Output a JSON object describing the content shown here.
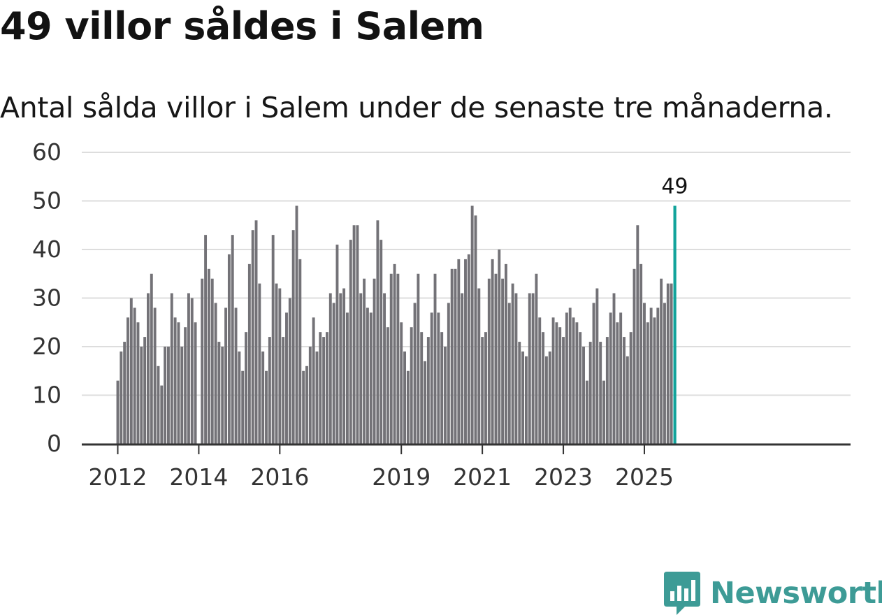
{
  "title": "49 villor såldes i Salem",
  "subtitle": "Antal sålda villor i Salem under de senaste tre månaderna.",
  "brand": {
    "name": "Newsworthy",
    "color": "#3d9b96"
  },
  "colors": {
    "bar": "#737277",
    "highlight": "#12a39b",
    "grid": "#dddddd",
    "axis": "#333333"
  },
  "chart_data": {
    "type": "bar",
    "title": "49 villor såldes i Salem",
    "subtitle": "Antal sålda villor i Salem under de senaste tre månaderna.",
    "xlabel": "",
    "ylabel": "",
    "ylim": [
      0,
      60
    ],
    "yticks": [
      0,
      10,
      20,
      30,
      40,
      50,
      60
    ],
    "start": "2012-01",
    "x_tick_labels": [
      {
        "label": "2012",
        "month_index": 0
      },
      {
        "label": "2014",
        "month_index": 24
      },
      {
        "label": "2016",
        "month_index": 48
      },
      {
        "label": "2019",
        "month_index": 84
      },
      {
        "label": "2021",
        "month_index": 108
      },
      {
        "label": "2023",
        "month_index": 132
      },
      {
        "label": "2025",
        "month_index": 156
      }
    ],
    "values": [
      13,
      19,
      21,
      26,
      30,
      28,
      25,
      20,
      22,
      31,
      35,
      28,
      16,
      12,
      20,
      20,
      31,
      26,
      25,
      20,
      24,
      31,
      30,
      25,
      0,
      34,
      43,
      36,
      34,
      29,
      21,
      20,
      28,
      39,
      43,
      28,
      19,
      15,
      23,
      37,
      44,
      46,
      33,
      19,
      15,
      22,
      43,
      33,
      32,
      22,
      27,
      30,
      44,
      49,
      38,
      15,
      16,
      20,
      26,
      19,
      23,
      22,
      23,
      31,
      29,
      41,
      31,
      32,
      27,
      42,
      45,
      45,
      31,
      34,
      28,
      27,
      34,
      46,
      42,
      31,
      24,
      35,
      37,
      35,
      25,
      19,
      15,
      24,
      29,
      35,
      23,
      17,
      22,
      27,
      35,
      27,
      23,
      20,
      29,
      36,
      36,
      38,
      31,
      38,
      39,
      49,
      47,
      32,
      22,
      23,
      34,
      38,
      35,
      40,
      34,
      37,
      29,
      33,
      31,
      21,
      19,
      18,
      31,
      31,
      35,
      26,
      23,
      18,
      19,
      26,
      25,
      24,
      22,
      27,
      28,
      26,
      25,
      23,
      20,
      13,
      21,
      29,
      32,
      21,
      13,
      22,
      27,
      31,
      25,
      27,
      22,
      18,
      23,
      36,
      45,
      37,
      29,
      25,
      28,
      26,
      28,
      34,
      29,
      33,
      33,
      49
    ],
    "highlight_label": "49"
  }
}
